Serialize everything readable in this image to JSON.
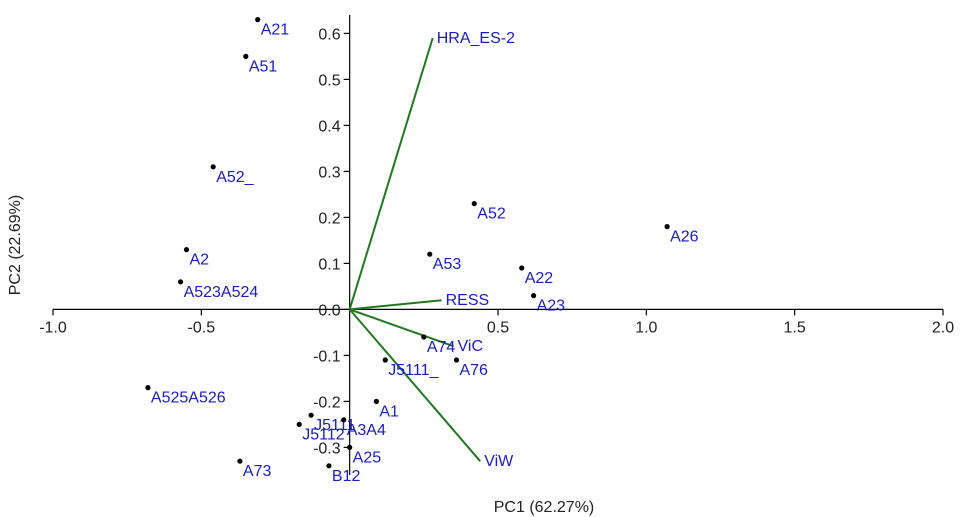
{
  "chart_data": {
    "type": "scatter",
    "subtype": "pca-biplot",
    "xlabel": "PC1 (62.27%)",
    "ylabel": "PC2 (22.69%)",
    "xlim": [
      -1.0,
      2.0
    ],
    "ylim": [
      -0.36,
      0.64
    ],
    "x_ticks": [
      -1.0,
      -0.5,
      0.5,
      1.0,
      1.5,
      2.0
    ],
    "x_tick_labels": [
      "-1.0",
      "-0.5",
      "0.5",
      "1.0",
      "1.5",
      "2.0"
    ],
    "y_ticks": [
      0.6,
      0.5,
      0.4,
      0.3,
      0.2,
      0.1,
      0.0,
      -0.1,
      -0.2,
      -0.3
    ],
    "y_tick_labels": [
      "0.6",
      "0.5",
      "0.4",
      "0.3",
      "0.2",
      "0.1",
      "0.0",
      "-0.1",
      "-0.2",
      "-0.3"
    ],
    "grid": false,
    "point_color": "#000000",
    "label_color": "#1a1ac8",
    "vector_color": "#1f7a1f",
    "points": [
      {
        "label": "A21",
        "x": -0.31,
        "y": 0.63
      },
      {
        "label": "A51",
        "x": -0.35,
        "y": 0.55
      },
      {
        "label": "A52_",
        "x": -0.46,
        "y": 0.31
      },
      {
        "label": "A2",
        "x": -0.55,
        "y": 0.13
      },
      {
        "label": "A523A524",
        "x": -0.57,
        "y": 0.06
      },
      {
        "label": "A525A526",
        "x": -0.68,
        "y": -0.17
      },
      {
        "label": "J5111",
        "x": -0.13,
        "y": -0.23
      },
      {
        "label": "J5112",
        "x": -0.17,
        "y": -0.25
      },
      {
        "label": "A3A4",
        "x": -0.02,
        "y": -0.24
      },
      {
        "label": "A1",
        "x": 0.09,
        "y": -0.2
      },
      {
        "label": "A25",
        "x": 0.0,
        "y": -0.3
      },
      {
        "label": "A73",
        "x": -0.37,
        "y": -0.33
      },
      {
        "label": "B12",
        "x": -0.07,
        "y": -0.34
      },
      {
        "label": "J5111_",
        "x": 0.12,
        "y": -0.11
      },
      {
        "label": "A74",
        "x": 0.25,
        "y": -0.06
      },
      {
        "label": "A76",
        "x": 0.36,
        "y": -0.11
      },
      {
        "label": "A53",
        "x": 0.27,
        "y": 0.12
      },
      {
        "label": "A52",
        "x": 0.42,
        "y": 0.23
      },
      {
        "label": "A22",
        "x": 0.58,
        "y": 0.09
      },
      {
        "label": "A23",
        "x": 0.62,
        "y": 0.03
      },
      {
        "label": "A26",
        "x": 1.07,
        "y": 0.18
      }
    ],
    "vectors": [
      {
        "label": "HRA_ES-2",
        "x": 0.28,
        "y": 0.59
      },
      {
        "label": "RESS",
        "x": 0.31,
        "y": 0.02
      },
      {
        "label": "ViC",
        "x": 0.35,
        "y": -0.08
      },
      {
        "label": "ViW",
        "x": 0.44,
        "y": -0.33
      }
    ]
  }
}
